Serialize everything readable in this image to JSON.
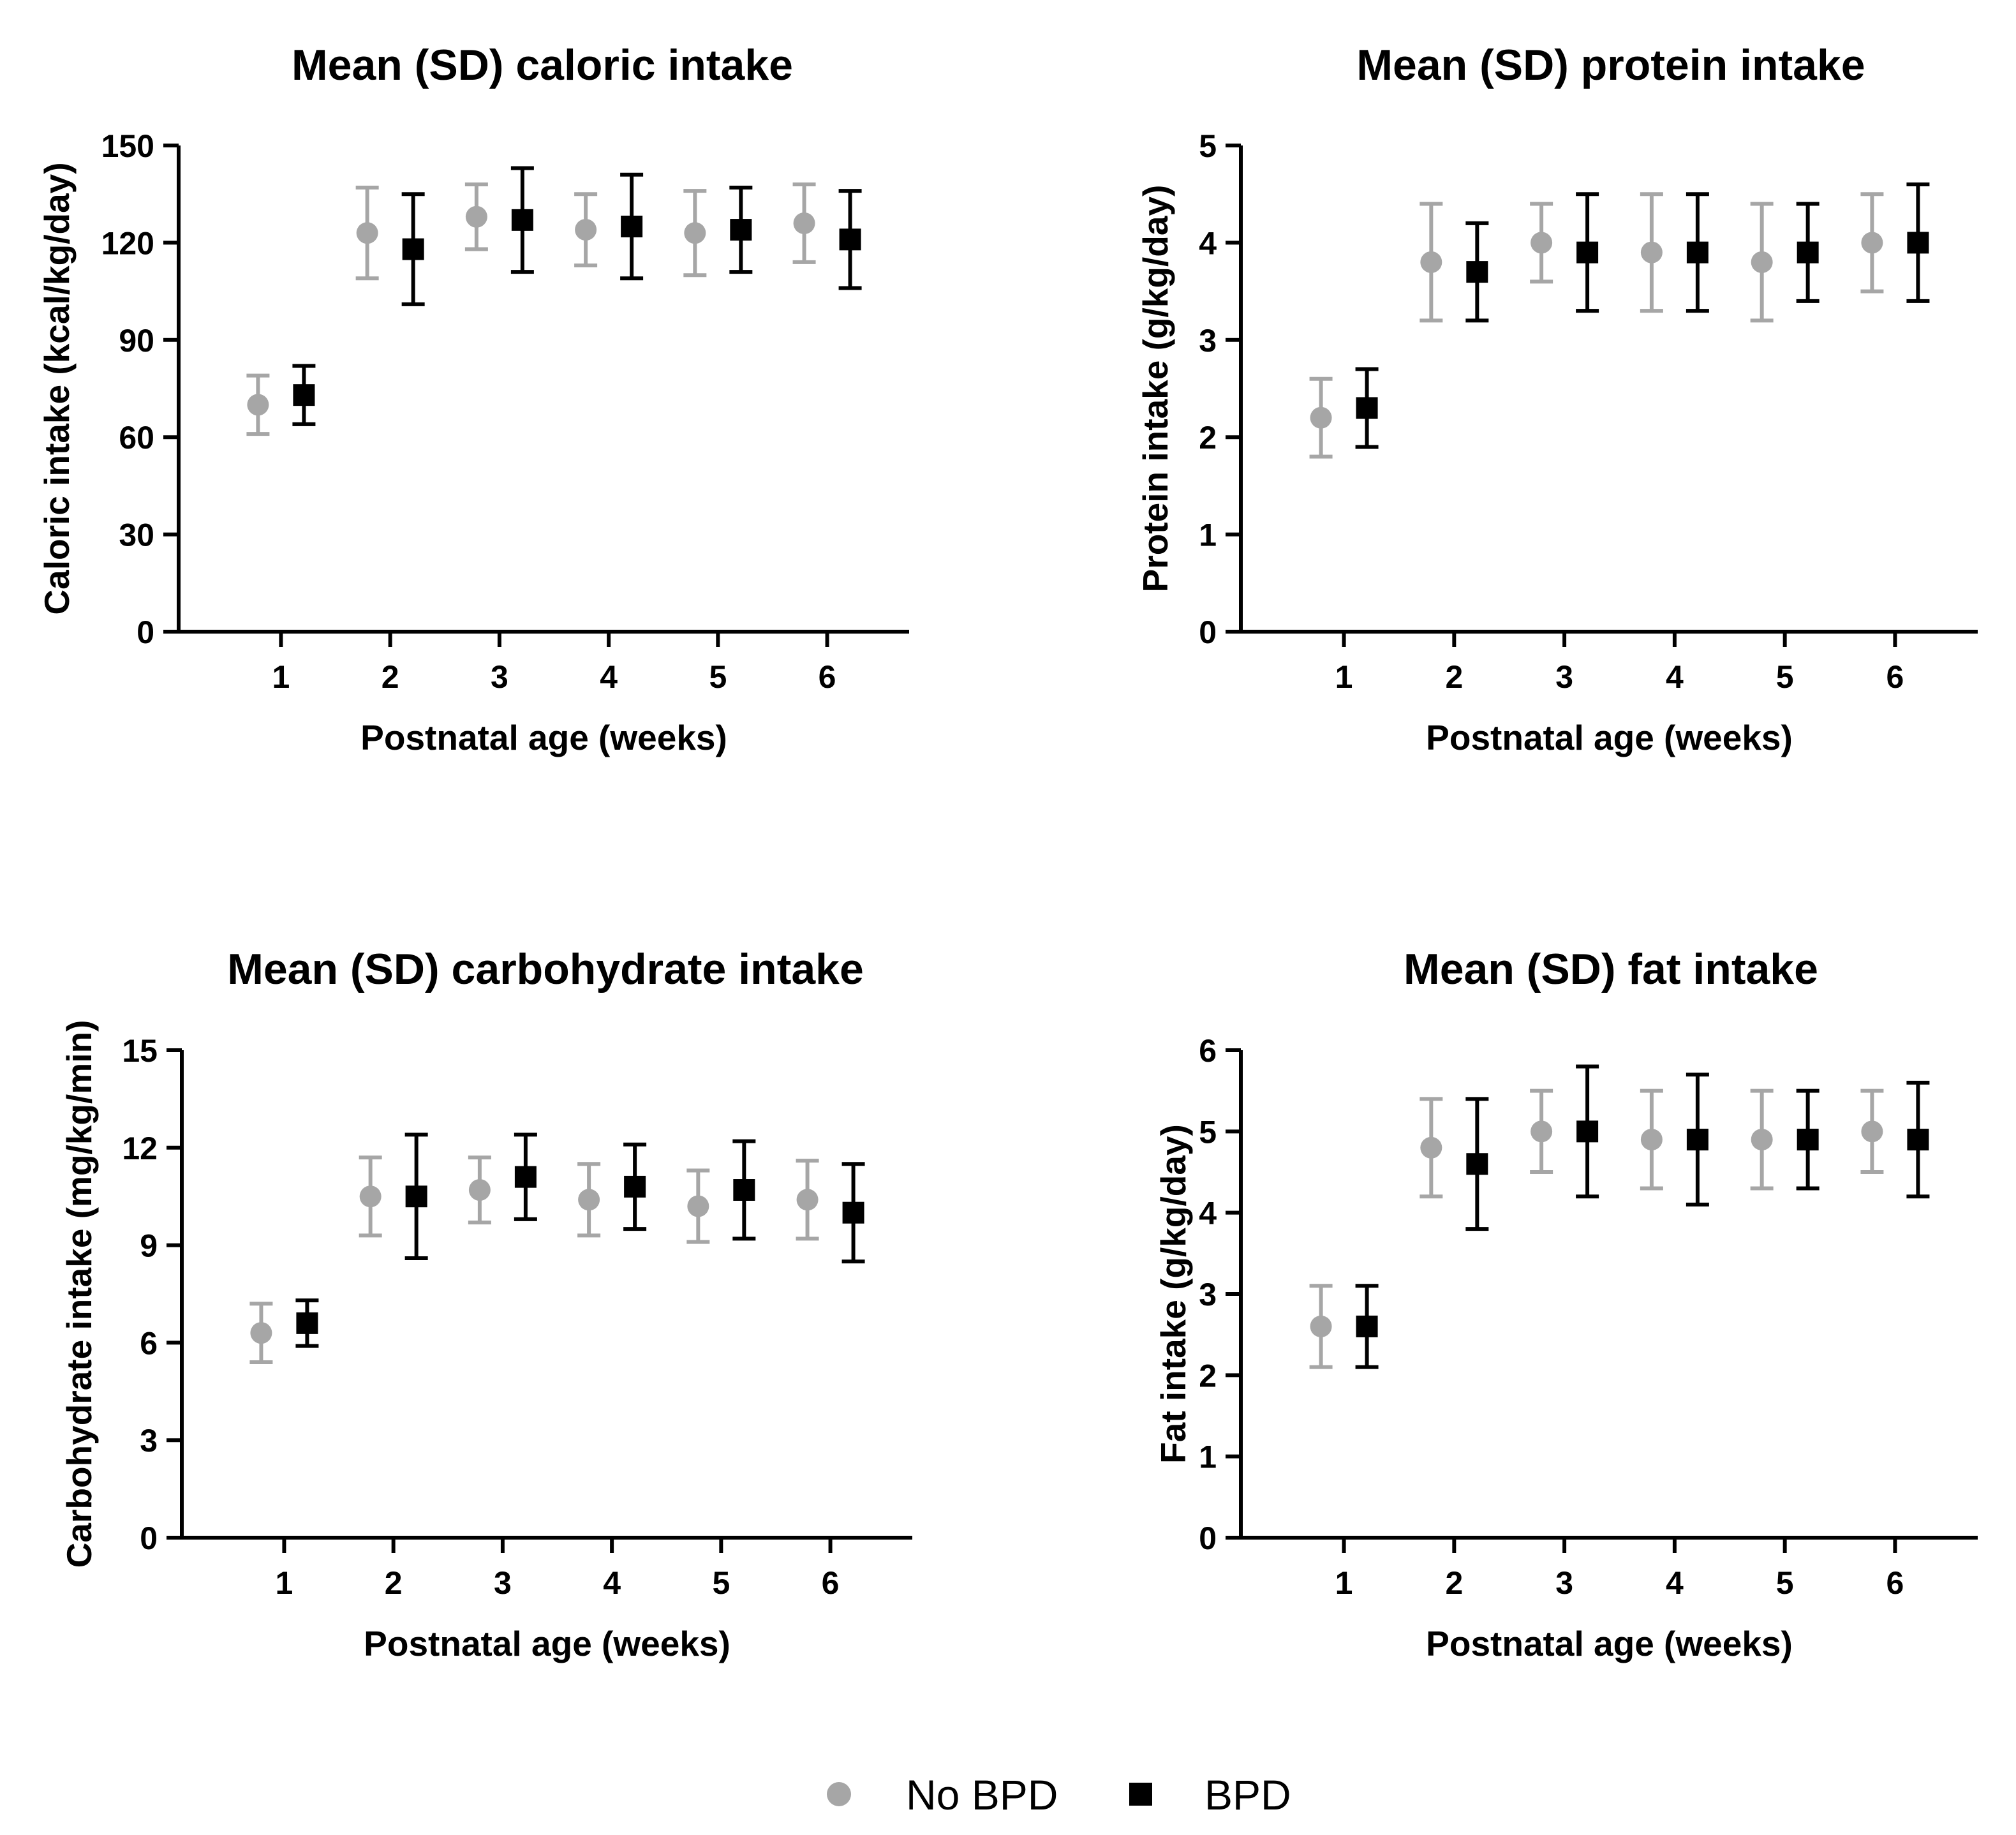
{
  "colors": {
    "no_bpd": "#a6a6a6",
    "bpd": "#000000",
    "axis": "#000000"
  },
  "legend": {
    "items": [
      {
        "label": "No BPD",
        "marker": "circle",
        "color": "#a6a6a6"
      },
      {
        "label": "BPD",
        "marker": "square",
        "color": "#000000"
      }
    ]
  },
  "chart_data": [
    {
      "type": "scatter",
      "title": "Mean (SD) caloric intake",
      "xlabel": "Postnatal age (weeks)",
      "ylabel": "Caloric intake (kcal/kg/day)",
      "categories": [
        "1",
        "2",
        "3",
        "4",
        "5",
        "6"
      ],
      "ylim": [
        0,
        150
      ],
      "yticks": [
        "0",
        "30",
        "60",
        "90",
        "120",
        "150"
      ],
      "series": [
        {
          "name": "No BPD",
          "marker": "circle",
          "mean": [
            70,
            123,
            128,
            124,
            123,
            126
          ],
          "sd": [
            9,
            14,
            10,
            11,
            13,
            12
          ]
        },
        {
          "name": "BPD",
          "marker": "square",
          "mean": [
            73,
            118,
            127,
            125,
            124,
            121
          ],
          "sd": [
            9,
            17,
            16,
            16,
            13,
            15
          ]
        }
      ]
    },
    {
      "type": "scatter",
      "title": "Mean (SD) protein intake",
      "xlabel": "Postnatal age (weeks)",
      "ylabel": "Protein intake (g/kg/day)",
      "categories": [
        "1",
        "2",
        "3",
        "4",
        "5",
        "6"
      ],
      "ylim": [
        0,
        5
      ],
      "yticks": [
        "0",
        "1",
        "2",
        "3",
        "4",
        "5"
      ],
      "series": [
        {
          "name": "No BPD",
          "marker": "circle",
          "mean": [
            2.2,
            3.8,
            4.0,
            3.9,
            3.8,
            4.0
          ],
          "sd": [
            0.4,
            0.6,
            0.4,
            0.6,
            0.6,
            0.5
          ]
        },
        {
          "name": "BPD",
          "marker": "square",
          "mean": [
            2.3,
            3.7,
            3.9,
            3.9,
            3.9,
            4.0
          ],
          "sd": [
            0.4,
            0.5,
            0.6,
            0.6,
            0.5,
            0.6
          ]
        }
      ]
    },
    {
      "type": "scatter",
      "title": "Mean (SD) carbohydrate intake",
      "xlabel": "Postnatal age (weeks)",
      "ylabel": "Carbohydrate intake (mg/kg/min)",
      "categories": [
        "1",
        "2",
        "3",
        "4",
        "5",
        "6"
      ],
      "ylim": [
        0,
        15
      ],
      "yticks": [
        "0",
        "3",
        "6",
        "9",
        "12",
        "15"
      ],
      "series": [
        {
          "name": "No BPD",
          "marker": "circle",
          "mean": [
            6.3,
            10.5,
            10.7,
            10.4,
            10.2,
            10.4
          ],
          "sd": [
            0.9,
            1.2,
            1.0,
            1.1,
            1.1,
            1.2
          ]
        },
        {
          "name": "BPD",
          "marker": "square",
          "mean": [
            6.6,
            10.5,
            11.1,
            10.8,
            10.7,
            10.0
          ],
          "sd": [
            0.7,
            1.9,
            1.3,
            1.3,
            1.5,
            1.5
          ]
        }
      ]
    },
    {
      "type": "scatter",
      "title": "Mean (SD) fat intake",
      "xlabel": "Postnatal age (weeks)",
      "ylabel": "Fat intake (g/kg/day)",
      "categories": [
        "1",
        "2",
        "3",
        "4",
        "5",
        "6"
      ],
      "ylim": [
        0,
        6
      ],
      "yticks": [
        "0",
        "1",
        "2",
        "3",
        "4",
        "5",
        "6"
      ],
      "series": [
        {
          "name": "No BPD",
          "marker": "circle",
          "mean": [
            2.6,
            4.8,
            5.0,
            4.9,
            4.9,
            5.0
          ],
          "sd": [
            0.5,
            0.6,
            0.5,
            0.6,
            0.6,
            0.5
          ]
        },
        {
          "name": "BPD",
          "marker": "square",
          "mean": [
            2.6,
            4.6,
            5.0,
            4.9,
            4.9,
            4.9
          ],
          "sd": [
            0.5,
            0.8,
            0.8,
            0.8,
            0.6,
            0.7
          ]
        }
      ]
    }
  ]
}
